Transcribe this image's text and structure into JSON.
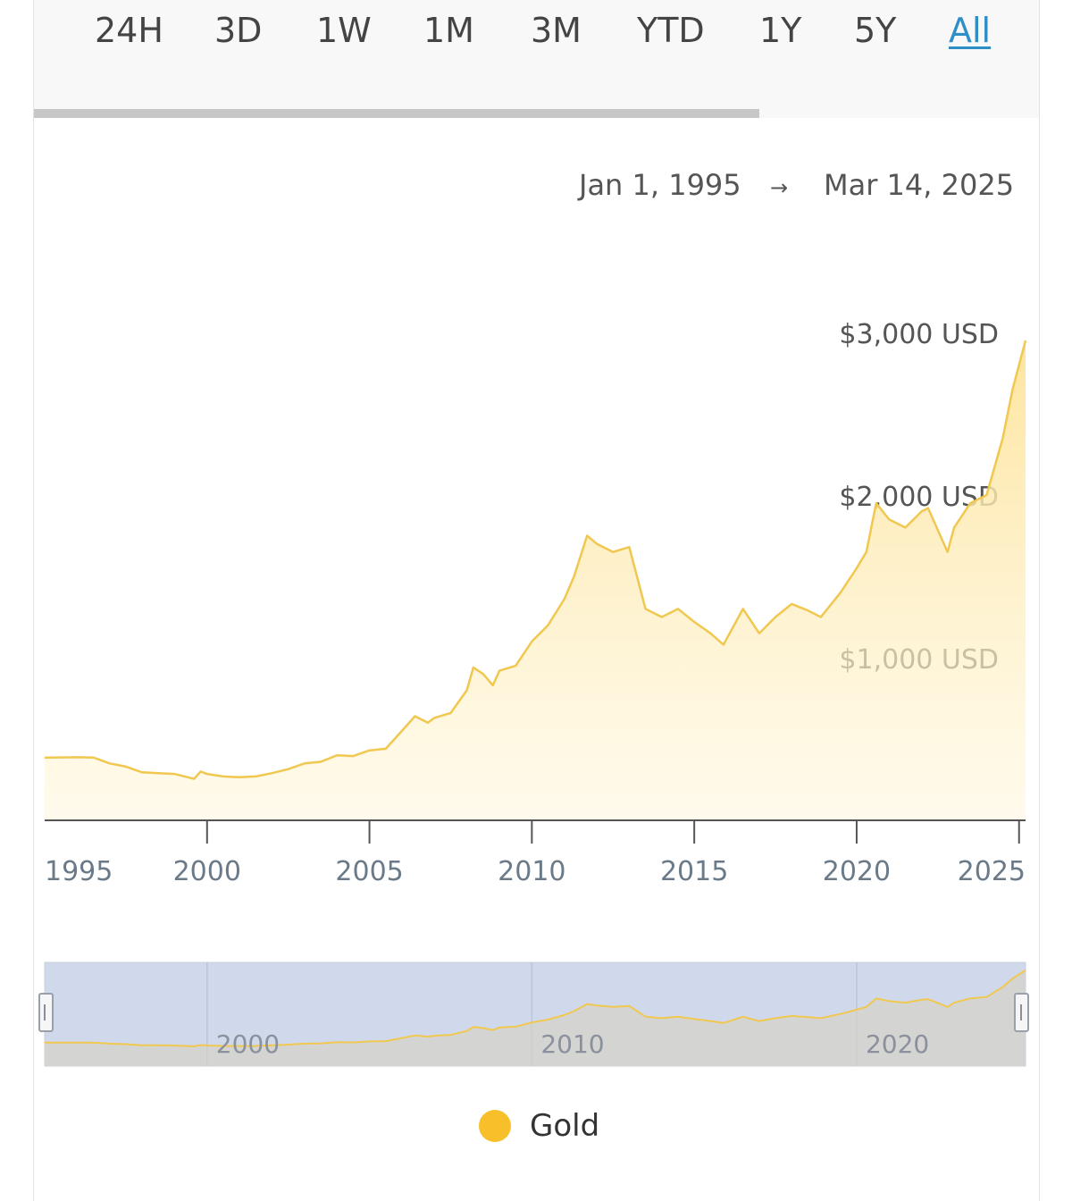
{
  "tabs": [
    {
      "label": "24H",
      "active": false
    },
    {
      "label": "3D",
      "active": false
    },
    {
      "label": "1W",
      "active": false
    },
    {
      "label": "1M",
      "active": false
    },
    {
      "label": "3M",
      "active": false
    },
    {
      "label": "YTD",
      "active": false
    },
    {
      "label": "1Y",
      "active": false
    },
    {
      "label": "5Y",
      "active": false
    },
    {
      "label": "All",
      "active": true
    }
  ],
  "date_range": {
    "start": "Jan 1, 1995",
    "arrow": "→",
    "end": "Mar 14, 2025"
  },
  "colors": {
    "line": "#f0c850",
    "fill": "#fde9a6",
    "navigator": "#d0d9ec",
    "active_tab": "#2e8fc7",
    "legend_dot": "#f7bf29"
  },
  "chart_data": {
    "type": "area",
    "series": [
      {
        "name": "Gold",
        "x": [
          1995.0,
          1996.0,
          1996.5,
          1997.0,
          1997.5,
          1998.0,
          1998.5,
          1999.0,
          1999.6,
          1999.8,
          2000.0,
          2000.5,
          2001.0,
          2001.5,
          2002.0,
          2002.5,
          2003.0,
          2003.5,
          2004.0,
          2004.5,
          2005.0,
          2005.5,
          2006.0,
          2006.4,
          2006.8,
          2007.0,
          2007.5,
          2008.0,
          2008.2,
          2008.5,
          2008.8,
          2009.0,
          2009.5,
          2010.0,
          2010.5,
          2011.0,
          2011.3,
          2011.7,
          2012.0,
          2012.5,
          2013.0,
          2013.5,
          2014.0,
          2014.5,
          2015.0,
          2015.5,
          2015.9,
          2016.5,
          2017.0,
          2017.5,
          2018.0,
          2018.5,
          2018.9,
          2019.5,
          2020.0,
          2020.3,
          2020.6,
          2021.0,
          2021.5,
          2022.0,
          2022.2,
          2022.8,
          2023.0,
          2023.5,
          2024.0,
          2024.5,
          2024.8,
          2025.2
        ],
        "values": [
          385,
          388,
          386,
          350,
          330,
          295,
          290,
          285,
          255,
          300,
          285,
          270,
          265,
          270,
          290,
          315,
          350,
          360,
          400,
          395,
          430,
          440,
          550,
          640,
          600,
          630,
          660,
          800,
          940,
          900,
          830,
          920,
          950,
          1100,
          1200,
          1360,
          1500,
          1750,
          1700,
          1650,
          1680,
          1300,
          1250,
          1300,
          1220,
          1150,
          1080,
          1300,
          1150,
          1250,
          1330,
          1290,
          1250,
          1400,
          1550,
          1650,
          1950,
          1850,
          1800,
          1900,
          1920,
          1650,
          1800,
          1950,
          2000,
          2350,
          2650,
          2950
        ]
      }
    ],
    "x_ticks": [
      1995,
      2000,
      2005,
      2010,
      2015,
      2020,
      2025
    ],
    "x_tick_labels": [
      "1995",
      "2000",
      "2005",
      "2010",
      "2015",
      "2020",
      "2025"
    ],
    "y_ticks": [
      1000,
      2000,
      3000
    ],
    "y_tick_labels": [
      "$1,000 USD",
      "$2,000 USD",
      "$3,000 USD"
    ],
    "x_range": [
      1995.0,
      2025.2
    ],
    "y_range": [
      0,
      3000
    ],
    "navigator_labels": [
      "2000",
      "2010",
      "2020"
    ],
    "navigator_ticks": [
      2000,
      2010,
      2020
    ],
    "legend_placement": "bottom-center"
  }
}
